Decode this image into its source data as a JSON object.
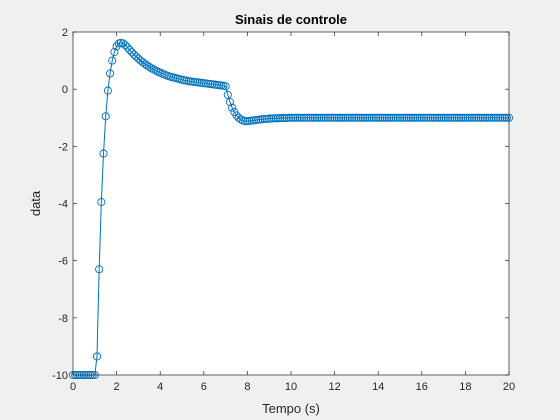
{
  "chart_data": {
    "type": "line",
    "title": "Sinais de controle",
    "xlabel": "Tempo (s)",
    "ylabel": "data",
    "xlim": [
      0,
      20
    ],
    "ylim": [
      -10,
      2
    ],
    "xticks": [
      "0",
      "2",
      "4",
      "6",
      "8",
      "10",
      "12",
      "14",
      "16",
      "18",
      "20"
    ],
    "yticks": [
      "-10",
      "-8",
      "-6",
      "-4",
      "-2",
      "0",
      "2"
    ],
    "grid": false,
    "colors": {
      "series": "#0072BD",
      "axes_bg": "#ffffff",
      "figure_bg": "#f0f0f0",
      "axis": "#262626"
    },
    "series": [
      {
        "name": "",
        "marker": "circle",
        "x": [
          0.0,
          0.1,
          0.2,
          0.3,
          0.4,
          0.5,
          0.6,
          0.7,
          0.8,
          0.9,
          1.0,
          1.1,
          1.2,
          1.3,
          1.4,
          1.5,
          1.6,
          1.7,
          1.8,
          1.9,
          2.0,
          2.1,
          2.2,
          2.3,
          2.4,
          2.5,
          2.6,
          2.7,
          2.8,
          2.9,
          3.0,
          3.1,
          3.2,
          3.3,
          3.4,
          3.5,
          3.6,
          3.7,
          3.8,
          3.9,
          4.0,
          4.1,
          4.2,
          4.3,
          4.4,
          4.5,
          4.6,
          4.7,
          4.8,
          4.9,
          5.0,
          5.1,
          5.2,
          5.3,
          5.4,
          5.5,
          5.6,
          5.7,
          5.8,
          5.9,
          6.0,
          6.1,
          6.2,
          6.3,
          6.4,
          6.5,
          6.6,
          6.7,
          6.8,
          6.9,
          7.0,
          7.1,
          7.2,
          7.3,
          7.4,
          7.5,
          7.6,
          7.7,
          7.8,
          7.9,
          8.0,
          8.1,
          8.2,
          8.3,
          8.4,
          8.5,
          8.6,
          8.7,
          8.8,
          8.9,
          9.0,
          9.1,
          9.2,
          9.3,
          9.4,
          9.5,
          9.6,
          9.7,
          9.8,
          9.9,
          10.0,
          10.1,
          10.2,
          10.3,
          10.4,
          10.5,
          10.6,
          10.7,
          10.8,
          10.9,
          11.0,
          11.1,
          11.2,
          11.3,
          11.4,
          11.5,
          11.6,
          11.7,
          11.8,
          11.9,
          12.0,
          12.1,
          12.2,
          12.3,
          12.4,
          12.5,
          12.6,
          12.7,
          12.8,
          12.9,
          13.0,
          13.1,
          13.2,
          13.3,
          13.4,
          13.5,
          13.6,
          13.7,
          13.8,
          13.9,
          14.0,
          14.1,
          14.2,
          14.3,
          14.4,
          14.5,
          14.6,
          14.7,
          14.8,
          14.9,
          15.0,
          15.1,
          15.2,
          15.3,
          15.4,
          15.5,
          15.6,
          15.7,
          15.8,
          15.9,
          16.0,
          16.1,
          16.2,
          16.3,
          16.4,
          16.5,
          16.6,
          16.7,
          16.8,
          16.9,
          17.0,
          17.1,
          17.2,
          17.3,
          17.4,
          17.5,
          17.6,
          17.7,
          17.8,
          17.9,
          18.0,
          18.1,
          18.2,
          18.3,
          18.4,
          18.5,
          18.6,
          18.7,
          18.8,
          18.9,
          19.0,
          19.1,
          19.2,
          19.3,
          19.4,
          19.5,
          19.6,
          19.7,
          19.8,
          19.9,
          20.0
        ],
        "y": [
          -10.0,
          -10.0,
          -10.0,
          -10.0,
          -10.0,
          -10.0,
          -10.0,
          -10.0,
          -10.0,
          -10.0,
          -10.0,
          -9.35,
          -6.3,
          -3.95,
          -2.25,
          -0.95,
          -0.05,
          0.55,
          1.0,
          1.3,
          1.5,
          1.6,
          1.62,
          1.6,
          1.54,
          1.46,
          1.37,
          1.29,
          1.21,
          1.14,
          1.07,
          1.0,
          0.94,
          0.88,
          0.83,
          0.78,
          0.73,
          0.69,
          0.65,
          0.61,
          0.58,
          0.54,
          0.51,
          0.48,
          0.45,
          0.43,
          0.41,
          0.39,
          0.37,
          0.35,
          0.33,
          0.31,
          0.3,
          0.28,
          0.27,
          0.26,
          0.25,
          0.24,
          0.23,
          0.22,
          0.21,
          0.2,
          0.19,
          0.18,
          0.17,
          0.16,
          0.15,
          0.14,
          0.13,
          0.12,
          0.1,
          -0.2,
          -0.45,
          -0.65,
          -0.8,
          -0.92,
          -1.0,
          -1.06,
          -1.1,
          -1.12,
          -1.12,
          -1.11,
          -1.1,
          -1.09,
          -1.08,
          -1.07,
          -1.06,
          -1.05,
          -1.04,
          -1.04,
          -1.03,
          -1.03,
          -1.02,
          -1.02,
          -1.02,
          -1.01,
          -1.01,
          -1.01,
          -1.01,
          -1.0,
          -1.0,
          -1.0,
          -1.0,
          -1.0,
          -1.0,
          -1.0,
          -1.0,
          -1.0,
          -1.0,
          -1.0,
          -1.0,
          -1.0,
          -1.0,
          -1.0,
          -1.0,
          -1.0,
          -1.0,
          -1.0,
          -1.0,
          -1.0,
          -1.0,
          -1.0,
          -1.0,
          -1.0,
          -1.0,
          -1.0,
          -1.0,
          -1.0,
          -1.0,
          -1.0,
          -1.0,
          -1.0,
          -1.0,
          -1.0,
          -1.0,
          -1.0,
          -1.0,
          -1.0,
          -1.0,
          -1.0,
          -1.0,
          -1.0,
          -1.0,
          -1.0,
          -1.0,
          -1.0,
          -1.0,
          -1.0,
          -1.0,
          -1.0,
          -1.0,
          -1.0,
          -1.0,
          -1.0,
          -1.0,
          -1.0,
          -1.0,
          -1.0,
          -1.0,
          -1.0,
          -1.0,
          -1.0,
          -1.0,
          -1.0,
          -1.0,
          -1.0,
          -1.0,
          -1.0,
          -1.0,
          -1.0,
          -1.0,
          -1.0,
          -1.0,
          -1.0,
          -1.0,
          -1.0,
          -1.0,
          -1.0,
          -1.0,
          -1.0,
          -1.0,
          -1.0,
          -1.0,
          -1.0,
          -1.0,
          -1.0,
          -1.0,
          -1.0,
          -1.0,
          -1.0,
          -1.0,
          -1.0,
          -1.0,
          -1.0,
          -1.0,
          -1.0,
          -1.0,
          -1.0,
          -1.0,
          -1.0,
          -1.0
        ]
      }
    ]
  }
}
